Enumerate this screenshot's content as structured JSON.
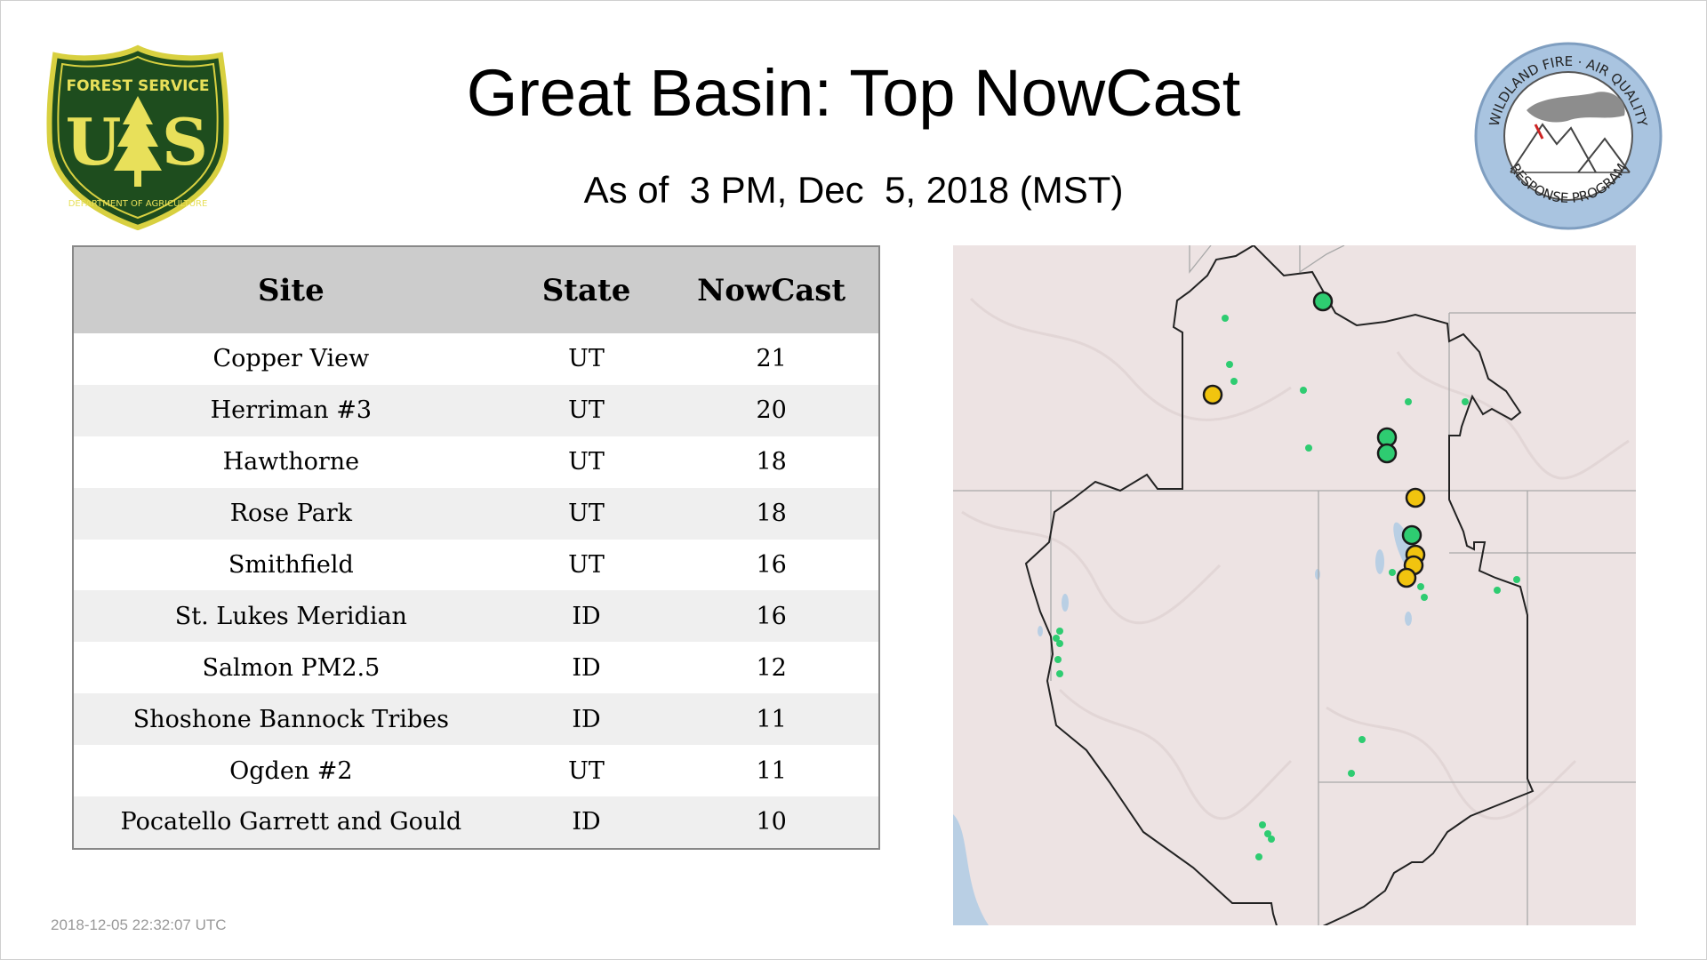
{
  "header": {
    "title": "Great Basin: Top NowCast",
    "subtitle": "As of  3 PM, Dec  5, 2018 (MST)"
  },
  "logos": {
    "left": {
      "icon": "forest-service-shield-icon",
      "top_text": "FOREST SERVICE",
      "letters": "U S",
      "bottom_text": "DEPARTMENT OF AGRICULTURE"
    },
    "right": {
      "icon": "wildland-fire-air-quality-seal-icon",
      "top_text": "WILDLAND FIRE · AIR QUALITY",
      "bottom_text": "RESPONSE PROGRAM"
    }
  },
  "table": {
    "headers": {
      "site": "Site",
      "state": "State",
      "nowcast": "NowCast"
    },
    "rows": [
      {
        "site": "Copper View",
        "state": "UT",
        "nowcast": "21"
      },
      {
        "site": "Herriman #3",
        "state": "UT",
        "nowcast": "20"
      },
      {
        "site": "Hawthorne",
        "state": "UT",
        "nowcast": "18"
      },
      {
        "site": "Rose Park",
        "state": "UT",
        "nowcast": "18"
      },
      {
        "site": "Smithfield",
        "state": "UT",
        "nowcast": "16"
      },
      {
        "site": "St. Lukes Meridian",
        "state": "ID",
        "nowcast": "16"
      },
      {
        "site": "Salmon PM2.5",
        "state": "ID",
        "nowcast": "12"
      },
      {
        "site": "Shoshone Bannock Tribes",
        "state": "ID",
        "nowcast": "11"
      },
      {
        "site": "Ogden #2",
        "state": "UT",
        "nowcast": "11"
      },
      {
        "site": "Pocatello Garrett and Gould",
        "state": "ID",
        "nowcast": "10"
      }
    ]
  },
  "footer": {
    "timestamp": "2018-12-05 22:32:07 UTC"
  },
  "map": {
    "colors": {
      "good": "#2ecc71",
      "moderate": "#f1c40f",
      "land": "#ede3e3",
      "water": "#b9cfe4",
      "outline": "#222222"
    }
  }
}
